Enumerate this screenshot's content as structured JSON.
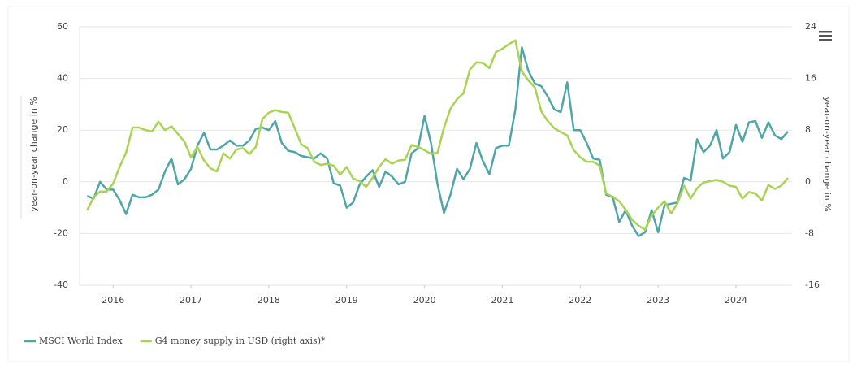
{
  "chart_data": {
    "type": "line",
    "x": [
      2015.667,
      2015.75,
      2015.833,
      2015.917,
      2016,
      2016.083,
      2016.167,
      2016.25,
      2016.333,
      2016.417,
      2016.5,
      2016.583,
      2016.667,
      2016.75,
      2016.833,
      2016.917,
      2017,
      2017.083,
      2017.167,
      2017.25,
      2017.333,
      2017.417,
      2017.5,
      2017.583,
      2017.667,
      2017.75,
      2017.833,
      2017.917,
      2018,
      2018.083,
      2018.167,
      2018.25,
      2018.333,
      2018.417,
      2018.5,
      2018.583,
      2018.667,
      2018.75,
      2018.833,
      2018.917,
      2019,
      2019.083,
      2019.167,
      2019.25,
      2019.333,
      2019.417,
      2019.5,
      2019.583,
      2019.667,
      2019.75,
      2019.833,
      2019.917,
      2020,
      2020.083,
      2020.167,
      2020.25,
      2020.333,
      2020.417,
      2020.5,
      2020.583,
      2020.667,
      2020.75,
      2020.833,
      2020.917,
      2021,
      2021.083,
      2021.167,
      2021.25,
      2021.333,
      2021.417,
      2021.5,
      2021.583,
      2021.667,
      2021.75,
      2021.833,
      2021.917,
      2022,
      2022.083,
      2022.167,
      2022.25,
      2022.333,
      2022.417,
      2022.5,
      2022.583,
      2022.667,
      2022.75,
      2022.833,
      2022.917,
      2023,
      2023.083,
      2023.167,
      2023.25,
      2023.333,
      2023.417,
      2023.5,
      2023.583,
      2023.667,
      2023.75,
      2023.833,
      2023.917,
      2024,
      2024.083,
      2024.167,
      2024.25,
      2024.333,
      2024.417,
      2024.5,
      2024.583,
      2024.667
    ],
    "series": [
      {
        "name": "MSCI World Index",
        "color": "#4fa5a8",
        "values": [
          -5.5,
          -6.5,
          0,
          -3,
          -3,
          -7,
          -12.5,
          -5,
          -6,
          -6,
          -5,
          -3,
          4,
          9,
          -1,
          1,
          5,
          14,
          19,
          12.5,
          12.5,
          14,
          16,
          14,
          14,
          16,
          20.5,
          21,
          20,
          23.5,
          15,
          12,
          11.5,
          10,
          9.5,
          9,
          11,
          9,
          -0.5,
          -1.5,
          -10,
          -8,
          -1,
          2,
          4.5,
          -2,
          4,
          2,
          -1,
          0,
          11,
          13,
          25.5,
          15,
          -1,
          -12,
          -5,
          5,
          1,
          5,
          15,
          8,
          3,
          13,
          14,
          14,
          28,
          52,
          43,
          38,
          37,
          33,
          28,
          27,
          38.5,
          20,
          20,
          15,
          9,
          8.5,
          -5,
          -6,
          -15.5,
          -11,
          -17,
          -21,
          -19.5,
          -11,
          -19.5,
          -9,
          -8.5,
          -8,
          1.5,
          0.5,
          16.5,
          11.5,
          14,
          20,
          9,
          11.5,
          22,
          15.5,
          23,
          23.5,
          17,
          23,
          18,
          16.5,
          19.5
        ]
      },
      {
        "name": "G4 money supply in USD (right axis)*",
        "color": "#a9d352",
        "axis": "y2",
        "values": [
          -4.4,
          -2.4,
          -1.5,
          -1.5,
          -0.3,
          2.3,
          4.5,
          8.4,
          8.4,
          8,
          7.8,
          9.3,
          8,
          8.6,
          7.4,
          6.2,
          3.8,
          5.4,
          3.3,
          2.1,
          1.6,
          4.4,
          3.6,
          5,
          5.2,
          4.3,
          5.4,
          9.7,
          10.7,
          11.1,
          10.8,
          10.7,
          8.3,
          5.8,
          5.2,
          3.1,
          2.6,
          2.8,
          2.5,
          1.1,
          2.3,
          0.5,
          0.1,
          -0.8,
          0.6,
          2.3,
          3.5,
          2.8,
          3.3,
          3.4,
          5.7,
          5.4,
          4.9,
          4.3,
          4.5,
          8.4,
          11.3,
          12.8,
          13.7,
          17.4,
          18.5,
          18.4,
          17.6,
          20.1,
          20.6,
          21.3,
          21.9,
          17.1,
          15.7,
          14.6,
          10.9,
          9.4,
          8.3,
          7.7,
          7.2,
          4.9,
          3.8,
          3.1,
          3.1,
          2.5,
          -1.8,
          -2.3,
          -3,
          -4.3,
          -5.9,
          -6.8,
          -7.4,
          -5.2,
          -4,
          -3,
          -4.9,
          -3.3,
          -0.6,
          -2.6,
          -1,
          -0.1,
          0.1,
          0.3,
          0,
          -0.6,
          -0.8,
          -2.6,
          -1.6,
          -1.8,
          -2.9,
          -0.5,
          -1.1,
          -0.6,
          0.6
        ]
      }
    ],
    "xlim": [
      2015.57,
      2024.72
    ],
    "xticks": [
      2016,
      2017,
      2018,
      2019,
      2020,
      2021,
      2022,
      2023,
      2024
    ],
    "ylim": [
      -40,
      60
    ],
    "yticks": [
      -40,
      -20,
      0,
      20,
      40,
      60
    ],
    "y2lim": [
      -16,
      24
    ],
    "y2ticks": [
      -16,
      -8,
      0,
      8,
      16,
      24
    ],
    "ylabel": "year-on-year change in %",
    "y2label": "year-on-year change in %",
    "grid": true,
    "legend": "bottom-left"
  }
}
